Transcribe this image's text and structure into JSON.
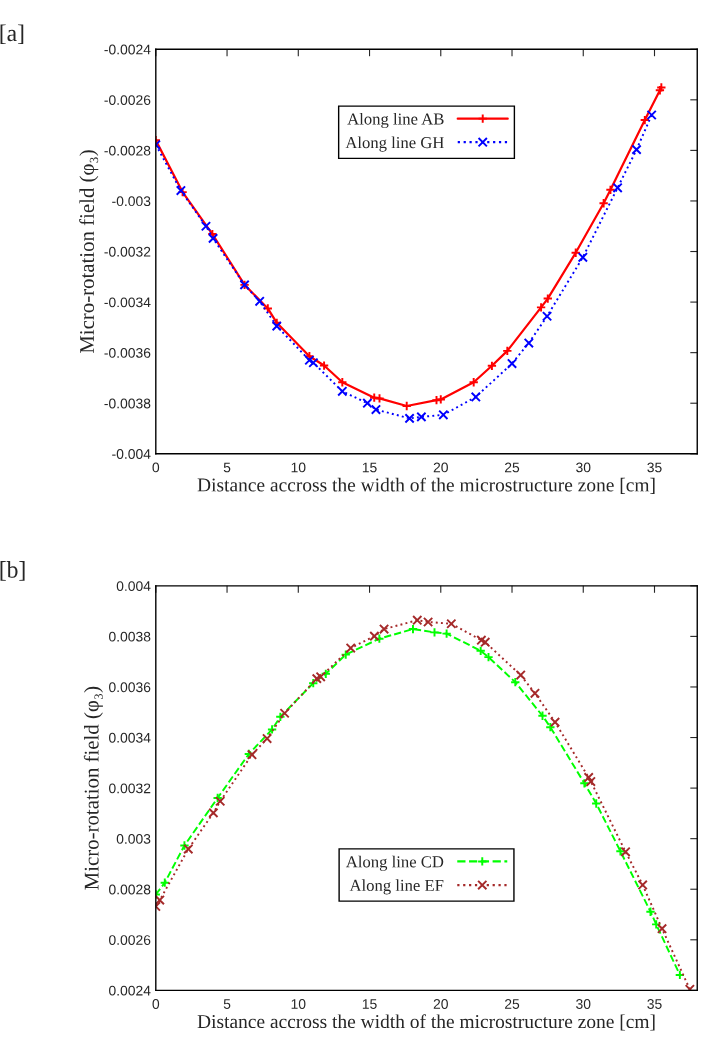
{
  "chart_data": [
    {
      "type": "line",
      "title": "[a]",
      "xlabel": "Distance accross the width of the microstructure zone [cm]",
      "ylabel": "Micro-rotation field (φ₃)",
      "xlim": [
        0,
        38
      ],
      "xticks": [
        0,
        5,
        10,
        15,
        20,
        25,
        30,
        35
      ],
      "ylim": [
        -0.004,
        -0.0024
      ],
      "yticks": [
        -0.004,
        -0.0038,
        -0.0036,
        -0.0034,
        -0.0032,
        -0.003,
        -0.0028,
        -0.0026,
        -0.0024
      ],
      "grid": false,
      "legend": "top",
      "series": [
        {
          "name": "Along line AB",
          "color": "#ff0000",
          "marker": "plus",
          "line_style": "solid",
          "x": [
            0,
            1.88,
            3.97,
            6.23,
            7.86,
            8.49,
            10.78,
            11.81,
            13.09,
            15.33,
            15.7,
            17.61,
            19.7,
            20.0,
            22.31,
            23.59,
            24.67,
            27.04,
            27.51,
            29.47,
            31.43,
            31.91,
            34.32,
            35.38,
            35.48
          ],
          "values": [
            -0.00276,
            -0.002965,
            -0.003131,
            -0.003332,
            -0.003425,
            -0.003482,
            -0.003614,
            -0.003651,
            -0.003717,
            -0.003778,
            -0.003781,
            -0.003811,
            -0.003788,
            -0.003785,
            -0.003717,
            -0.003652,
            -0.003593,
            -0.003421,
            -0.003386,
            -0.003205,
            -0.003009,
            -0.002956,
            -0.00268,
            -0.002562,
            -0.002551
          ]
        },
        {
          "name": "Along line GH",
          "color": "#0000ff",
          "marker": "cross",
          "line_style": "dotted",
          "x": [
            0,
            1.76,
            3.52,
            4.02,
            6.23,
            7.29,
            8.49,
            10.78,
            11.06,
            13.09,
            14.85,
            15.45,
            17.81,
            18.64,
            20.18,
            22.46,
            25.0,
            26.18,
            27.46,
            29.97,
            32.41,
            33.74,
            34.8
          ],
          "values": [
            -0.002778,
            -0.002959,
            -0.0031,
            -0.003148,
            -0.003332,
            -0.003397,
            -0.003495,
            -0.00363,
            -0.00364,
            -0.003753,
            -0.0038,
            -0.003825,
            -0.00386,
            -0.003854,
            -0.003846,
            -0.003775,
            -0.003643,
            -0.003562,
            -0.003456,
            -0.003223,
            -0.002948,
            -0.002797,
            -0.00266
          ]
        }
      ]
    },
    {
      "type": "line",
      "title": "[b]",
      "xlabel": "Distance accross the width of the microstructure zone [cm]",
      "ylabel": "Micro-rotation field (φ₃)",
      "xlim": [
        0,
        38
      ],
      "xticks": [
        0,
        5,
        10,
        15,
        20,
        25,
        30,
        35
      ],
      "ylim": [
        0.0024,
        0.004
      ],
      "yticks": [
        0.0024,
        0.0026,
        0.0028,
        0.003,
        0.0032,
        0.0034,
        0.0036,
        0.0038,
        0.004
      ],
      "grid": false,
      "legend": "bottom",
      "series": [
        {
          "name": "Along line CD",
          "color": "#00ff00",
          "marker": "plus",
          "line_style": "dashed",
          "x": [
            0,
            0.63,
            2.01,
            4.34,
            6.53,
            8.16,
            8.74,
            11.05,
            11.93,
            13.33,
            15.69,
            18.05,
            19.56,
            20.41,
            22.8,
            23.35,
            25.23,
            27.14,
            27.69,
            30.08,
            30.91,
            32.61,
            34.72,
            35.12,
            36.78
          ],
          "values": [
            0.002779,
            0.002826,
            0.002973,
            0.003161,
            0.003335,
            0.003432,
            0.003482,
            0.003615,
            0.003652,
            0.003728,
            0.003791,
            0.003829,
            0.003816,
            0.003811,
            0.003743,
            0.003718,
            0.003619,
            0.003486,
            0.003441,
            0.003219,
            0.003139,
            0.00295,
            0.002711,
            0.002661,
            0.002461
          ]
        },
        {
          "name": "Along line EF",
          "color": "#a52a2a",
          "marker": "cross",
          "line_style": "dotted",
          "x": [
            0,
            0.28,
            2.28,
            4.04,
            4.52,
            6.75,
            7.81,
            9.04,
            11.3,
            11.57,
            13.68,
            15.34,
            16.02,
            18.35,
            19.11,
            20.74,
            22.85,
            23.12,
            25.61,
            26.61,
            28.02,
            30.38,
            30.53,
            32.97,
            34.17,
            35.53,
            37.48
          ],
          "values": [
            0.002732,
            0.002757,
            0.002959,
            0.003102,
            0.003148,
            0.003332,
            0.003396,
            0.003496,
            0.003633,
            0.00364,
            0.003754,
            0.003801,
            0.003829,
            0.003864,
            0.003857,
            0.00385,
            0.003785,
            0.003777,
            0.003647,
            0.003575,
            0.003461,
            0.003242,
            0.003226,
            0.002948,
            0.002817,
            0.002644,
            0.002404
          ]
        }
      ]
    }
  ]
}
